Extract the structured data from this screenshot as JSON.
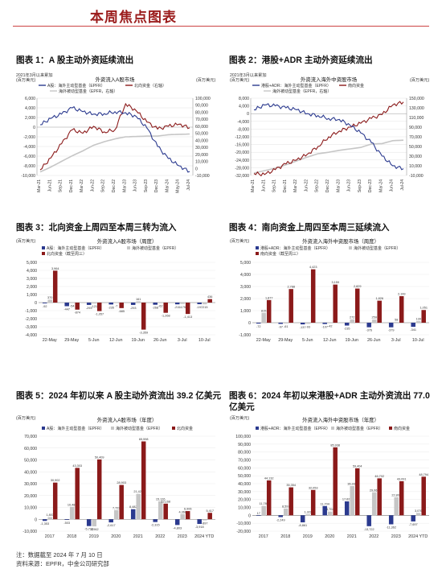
{
  "page": {
    "title": "本周焦点图表"
  },
  "footnotes": {
    "note": "注：数据截至 2024 年 7 月 10 日",
    "source": "资料来源：EPFR，中金公司研究部"
  },
  "colors": {
    "navy": "#2b3a8f",
    "maroon": "#8b1a1a",
    "gray": "#c6c6c6",
    "grid": "#e3e3e3"
  },
  "chart_data": [
    {
      "id": "fig1",
      "type": "line",
      "caption": "图表 1：A 股主动外资延续流出",
      "title": "外资流入A股市场",
      "note_top": "2021年3月以来累加",
      "left_unit": "(百万美元)",
      "right_unit": "(百万美元)",
      "legend": [
        "A股：海外主动型基金（EPFR）",
        "北向资金（右轴）",
        "海外被动型基金（EPFR，右轴）"
      ],
      "x": [
        "Mar-21",
        "Jun-21",
        "Sep-21",
        "Dec-21",
        "Mar-22",
        "Jun-22",
        "Sep-22",
        "Dec-22",
        "Mar-23",
        "Jun-23",
        "Sep-23",
        "Dec-23",
        "Mar-24",
        "May-24",
        "Jul-24"
      ],
      "ylim_left": [
        -10000,
        6000
      ],
      "yticks_left": [
        6000,
        4000,
        2000,
        0,
        -2000,
        -4000,
        -6000,
        -8000,
        -10000
      ],
      "ylim_right": [
        -10000,
        100000
      ],
      "yticks_right": [
        100000,
        90000,
        80000,
        70000,
        60000,
        50000,
        40000,
        30000,
        20000,
        10000,
        0,
        -10000
      ],
      "series": [
        {
          "name": "A股：海外主动型基金（EPFR）",
          "axis": "left",
          "values": [
            500,
            1800,
            2700,
            4000,
            3200,
            2700,
            2800,
            3200,
            3000,
            2200,
            -200,
            -4000,
            -6500,
            -8000,
            -9200
          ]
        },
        {
          "name": "北向资金（右轴）",
          "axis": "right",
          "values": [
            -2000,
            15000,
            35000,
            55000,
            50000,
            60000,
            52000,
            55000,
            92000,
            82000,
            66000,
            56000,
            60000,
            63000,
            58000
          ]
        },
        {
          "name": "海外被动型基金（EPFR，右轴）",
          "axis": "right",
          "values": [
            -5000,
            2000,
            10000,
            18000,
            25000,
            33000,
            38000,
            42000,
            45000,
            45500,
            46000,
            46000,
            48000,
            48500,
            49000
          ]
        }
      ]
    },
    {
      "id": "fig2",
      "type": "line",
      "caption": "图表 2：港股+ADR 主动外资延续流出",
      "title": "外资流入海外中资股市场",
      "note_top": "2021年3月以来累加",
      "left_unit": "(百万美元)",
      "right_unit": "(百万美元)",
      "legend": [
        "港股+ADR：海外主动型基金（EPFR）",
        "南向资金",
        "海外被动型基金（EPFR，右轴）"
      ],
      "x": [
        "Mar-21",
        "Jun-21",
        "Sep-21",
        "Dec-21",
        "Mar-22",
        "Jun-22",
        "Sep-22",
        "Dec-22",
        "Mar-23",
        "Jun-23",
        "Sep-23",
        "Dec-23",
        "Mar-24",
        "Jun-24",
        "Jul-24"
      ],
      "ylim_left": [
        -32000,
        8000
      ],
      "yticks_left": [
        8000,
        4000,
        0,
        -4000,
        -8000,
        -12000,
        -16000,
        -20000,
        -24000,
        -28000,
        -32000
      ],
      "ylim_right": [
        -10000,
        150000
      ],
      "yticks_right": [
        150000,
        130000,
        110000,
        90000,
        70000,
        50000,
        30000,
        10000,
        -10000
      ],
      "series": [
        {
          "name": "港股+ADR：海外主动型基金（EPFR）",
          "axis": "left",
          "values": [
            2000,
            4500,
            4000,
            3000,
            2000,
            0,
            -1000,
            -2500,
            -3000,
            -6000,
            -10000,
            -15000,
            -22000,
            -27000,
            -28500
          ]
        },
        {
          "name": "南向资金",
          "axis": "left",
          "values": [
            -31000,
            -31500,
            -29000,
            -26000,
            -24000,
            -21000,
            -17000,
            -12000,
            -9000,
            -7000,
            -5000,
            -2500,
            -500,
            4500,
            6000
          ]
        },
        {
          "name": "海外被动型基金（EPFR，右轴）",
          "axis": "right",
          "values": [
            -5000,
            0,
            5000,
            12000,
            20000,
            28000,
            35000,
            38000,
            42000,
            45000,
            48000,
            55000,
            56000,
            62000,
            63000
          ]
        }
      ]
    },
    {
      "id": "fig3",
      "type": "bar",
      "caption": "图表 3：北向资金上周四至本周三转为流入",
      "title": "外资流入A股市场（周度）",
      "unit": "(百万美元)",
      "legend": [
        "A股：海外主动型基金（EPFR）",
        "海外被动型基金（EPFR）",
        "北向资金（截至周三）"
      ],
      "categories": [
        "22-May",
        "29-May",
        "5-Jun",
        "12-Jun",
        "19-Jun",
        "26-Jun",
        "3-Jul",
        "10-Jul"
      ],
      "ylim": [
        -4000,
        5000
      ],
      "yticks": [
        5000,
        4000,
        3000,
        2000,
        1000,
        0,
        -1000,
        -2000,
        -3000,
        -4000
      ],
      "series": [
        {
          "name": "A股：海外主动型基金（EPFR）",
          "values": [
            -92,
            -447,
            -293,
            -235,
            -293,
            -268,
            -215,
            -197
          ]
        },
        {
          "name": "海外被动型基金（EPFR）",
          "values": [
            370,
            -54,
            -121,
            -7,
            161,
            -62,
            -175,
            -215
          ]
        },
        {
          "name": "北向资金（截至周三）",
          "values": [
            3964,
            -874,
            -1057,
            -685,
            -3359,
            -1268,
            -1413,
            436
          ]
        }
      ],
      "labels": [
        [
          "-92",
          "-447",
          "-293",
          "-235",
          "-293",
          "-268",
          "-215",
          "-197"
        ],
        [
          "370",
          "-54",
          "-121",
          "-7",
          "161",
          "-62",
          "-175",
          "-215"
        ],
        [
          "3,964",
          "-874",
          "-1,057",
          "-685",
          "-3,359",
          "-1,268",
          "-1,413",
          "436"
        ]
      ]
    },
    {
      "id": "fig4",
      "type": "bar",
      "caption": "图表 4：南向资金上周四至本周三延续流入",
      "title": "外资流入海外中资股市场（周度）",
      "unit": "(百万美元)",
      "legend": [
        "港股+ADR：海外主动型基金（EPFR）",
        "海外被动型基金（EPFR）",
        "南向资金（截至周三）"
      ],
      "categories": [
        "22-May",
        "29-May",
        "5-Jun",
        "12-Jun",
        "19-Jun",
        "26-Jun",
        "3-Jul",
        "10-Jul"
      ],
      "ylim": [
        -1000,
        5000
      ],
      "yticks": [
        5000,
        4000,
        3000,
        2000,
        1000,
        0,
        -1000
      ],
      "series": [
        {
          "name": "港股+ADR：海外主动型基金（EPFR）",
          "values": [
            -72,
            -97,
            -137,
            -107,
            -235,
            -376,
            -379,
            -341
          ]
        },
        {
          "name": "海外被动型基金（EPFR）",
          "values": [
            815,
            -61,
            -93,
            -42,
            272,
            259,
            58,
            139
          ]
        },
        {
          "name": "南向资金（截至周三）",
          "values": [
            1877,
            2788,
            4423,
            3159,
            2829,
            1826,
            2199,
            1051
          ]
        }
      ],
      "labels": [
        [
          "-72",
          "-97",
          "-137",
          "-107",
          "-235",
          "-376",
          "-379",
          "-341"
        ],
        [
          "815",
          "-61",
          "-93",
          "-42",
          "272",
          "259",
          "58",
          "139"
        ],
        [
          "1,877",
          "2,788",
          "4,423",
          "3,159",
          "2,829",
          "1,826",
          "2,199",
          "1,051"
        ]
      ]
    },
    {
      "id": "fig5",
      "type": "bar",
      "caption": "图表 5：2024 年初以来 A 股主动外资流出 39.2 亿美元",
      "title": "外资流入A股市场（年度）",
      "unit": "(百万美元)",
      "legend": [
        "A股：海外主动型基金（EPFR）",
        "海外被动型基金（EPFR）",
        "北向资金"
      ],
      "categories": [
        "2017",
        "2018",
        "2019",
        "2020",
        "2021",
        "2022",
        "2023",
        "2024 YTD"
      ],
      "ylim": [
        -10000,
        70000
      ],
      "yticks": [
        70000,
        60000,
        50000,
        40000,
        30000,
        20000,
        10000,
        0,
        -10000
      ],
      "series": [
        {
          "name": "A股：海外主动型基金（EPFR）",
          "values": [
            -1353,
            -503,
            -5713,
            -2617,
            8482,
            -2315,
            -4803,
            -3918
          ]
        },
        {
          "name": "海外被动型基金（EPFR）",
          "values": [
            1803,
            10488,
            -5962,
            7722,
            21426,
            15126,
            4368,
            -897
          ]
        },
        {
          "name": "北向资金",
          "values": [
            30902,
            43303,
            50409,
            28903,
            65598,
            13168,
            6906,
            5417
          ]
        }
      ],
      "labels": [
        [
          "-1,353",
          "-503",
          "-5,713",
          "-2,617",
          "8,482",
          "-2,315",
          "-4,803",
          "-3,918"
        ],
        [
          "1,803",
          "10,488",
          "-5,962",
          "7,722",
          "21,426",
          "15,126",
          "4,368",
          "-897"
        ],
        [
          "30,902",
          "43,303",
          "50,409",
          "28,903",
          "65,598",
          "13,168",
          "6,906",
          "5,417"
        ]
      ]
    },
    {
      "id": "fig6",
      "type": "bar",
      "caption": "图表 6：2024 年初以来港股+ADR 主动外资流出 77.0 亿美元",
      "title": "外资流入海外中资股市场（年度）",
      "unit": "(百万美元)",
      "legend": [
        "港股+ADR：海外主动型基金（EPFR）",
        "海外被动型基金（EPFR）",
        "南向资金"
      ],
      "categories": [
        "2017",
        "2018",
        "2019",
        "2020",
        "2021",
        "2022",
        "2023",
        "2024 YTD"
      ],
      "ylim": [
        -20000,
        100000
      ],
      "yticks": [
        100000,
        90000,
        80000,
        70000,
        60000,
        50000,
        40000,
        30000,
        20000,
        10000,
        0,
        -10000,
        -20000
      ],
      "series": [
        {
          "name": "港股+ADR：海外主动型基金（EPFR）",
          "values": [
            17,
            -2249,
            -8861,
            11704,
            17622,
            -13722,
            -11362,
            -7697
          ]
        },
        {
          "name": "海外被动型基金（EPFR）",
          "values": [
            11780,
            8597,
            1322,
            4704,
            36936,
            29067,
            22808,
            3076
          ]
        },
        {
          "name": "南向资金",
          "values": [
            44132,
            35354,
            32053,
            85938,
            59404,
            46702,
            43091,
            48794
          ]
        }
      ],
      "labels": [
        [
          "17",
          "-2,249",
          "-8,861",
          "11,704",
          "17,622",
          "-13,722",
          "-11,362",
          "-7,697"
        ],
        [
          "11,780",
          "8,597",
          "1,322",
          "4,704",
          "36,936",
          "29,067",
          "22,808",
          "3,076"
        ],
        [
          "44,132",
          "35,354",
          "32,053",
          "85,938",
          "59,404",
          "46,702",
          "43,091",
          "48,794"
        ]
      ]
    }
  ]
}
